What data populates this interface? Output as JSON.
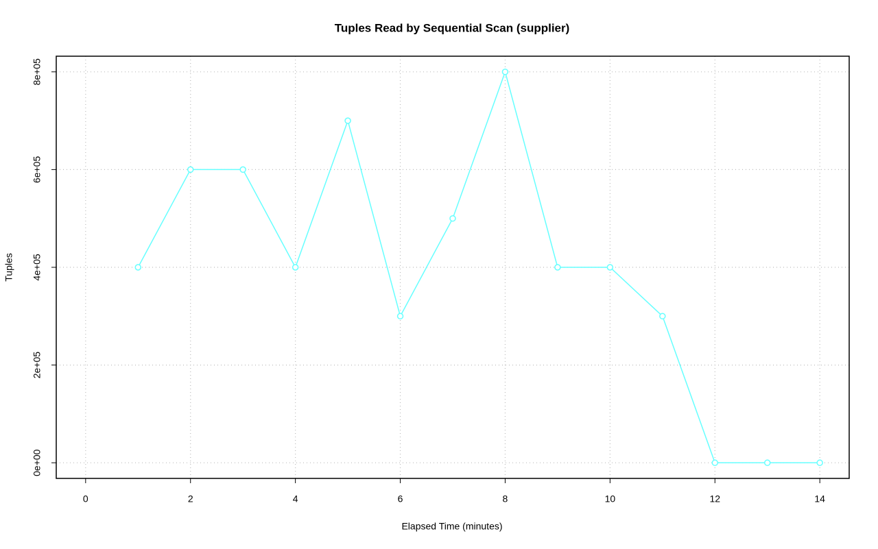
{
  "chart_data": {
    "type": "line",
    "title": "Tuples Read by Sequential Scan (supplier)",
    "x_label": "Elapsed Time (minutes)",
    "y_label": "Tuples",
    "x": [
      1,
      2,
      3,
      4,
      5,
      6,
      7,
      8,
      9,
      10,
      11,
      12,
      13,
      14
    ],
    "series": [
      {
        "name": "supplier",
        "color": "#66ffff",
        "values": [
          400000,
          600000,
          600000,
          400000,
          700000,
          300000,
          500000,
          800000,
          400000,
          400000,
          300000,
          0,
          0,
          0
        ]
      }
    ],
    "xlim": [
      -0.56,
      14.56
    ],
    "xticks": [
      0,
      2,
      4,
      6,
      8,
      10,
      12,
      14
    ],
    "ylim": [
      -32000,
      832000
    ],
    "yticks": [
      {
        "value": 0,
        "label": "0e+00"
      },
      {
        "value": 200000,
        "label": "2e+05"
      },
      {
        "value": 400000,
        "label": "4e+05"
      },
      {
        "value": 600000,
        "label": "6e+05"
      },
      {
        "value": 800000,
        "label": "8e+05"
      }
    ],
    "grid": true
  }
}
